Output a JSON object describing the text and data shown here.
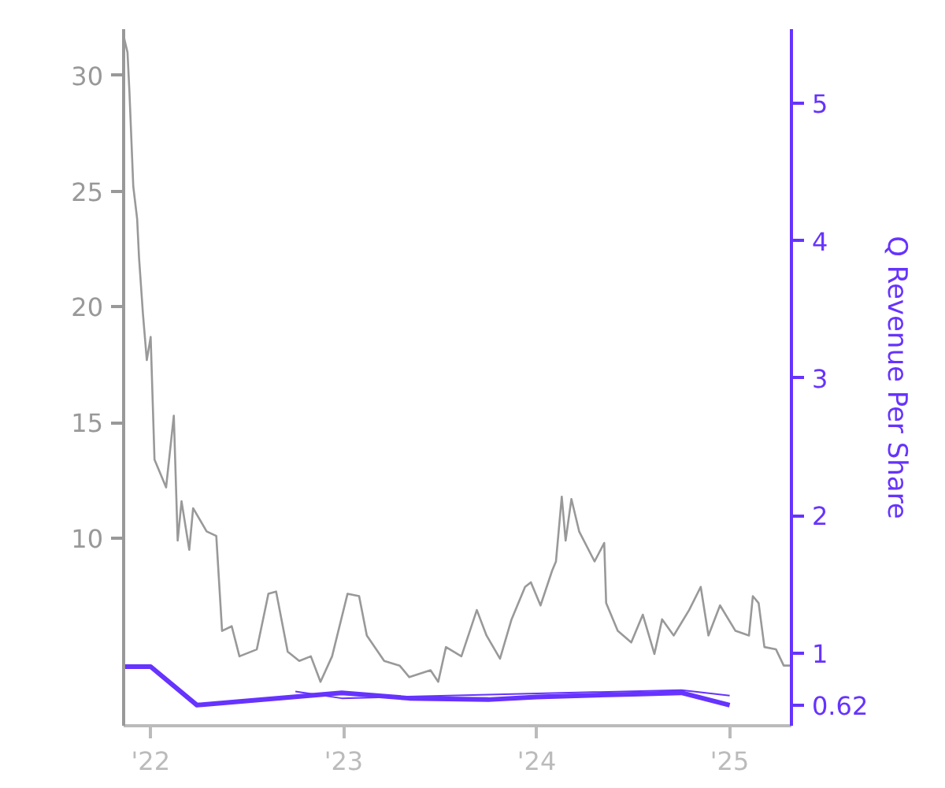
{
  "chart_data": {
    "type": "line",
    "y2label": "Q Revenue Per Share",
    "xlim": [
      2021.86,
      2025.32
    ],
    "xticks": [
      {
        "value": 2022,
        "label": "'22"
      },
      {
        "value": 2023,
        "label": "'23"
      },
      {
        "value": 2024,
        "label": "'24"
      },
      {
        "value": 2025,
        "label": "'25"
      }
    ],
    "ylim": [
      1.9,
      32.0
    ],
    "yticks": [
      10,
      15,
      20,
      25,
      30
    ],
    "y2lim": [
      0.47,
      5.54
    ],
    "y2ticks": [
      1,
      2,
      3,
      4,
      5
    ],
    "grid": false,
    "marker": "none",
    "line_style": "solid",
    "series": [
      {
        "color": "#999999",
        "x": [
          2021.86,
          2021.88,
          2021.89,
          2021.91,
          2021.93,
          2021.94,
          2021.96,
          2021.98,
          2022.0,
          2022.02,
          2022.08,
          2022.12,
          2022.14,
          2022.16,
          2022.2,
          2022.22,
          2022.29,
          2022.34,
          2022.37,
          2022.42,
          2022.46,
          2022.55,
          2022.61,
          2022.65,
          2022.71,
          2022.77,
          2022.83,
          2022.88,
          2022.94,
          2023.02,
          2023.08,
          2023.12,
          2023.21,
          2023.29,
          2023.34,
          2023.45,
          2023.49,
          2023.53,
          2023.61,
          2023.69,
          2023.74,
          2023.81,
          2023.87,
          2023.94,
          2023.97,
          2024.02,
          2024.08,
          2024.1,
          2024.13,
          2024.15,
          2024.18,
          2024.22,
          2024.3,
          2024.35,
          2024.36,
          2024.42,
          2024.49,
          2024.55,
          2024.61,
          2024.65,
          2024.71,
          2024.79,
          2024.85,
          2024.89,
          2024.95,
          2025.03,
          2025.1,
          2025.12,
          2025.15,
          2025.18,
          2025.24,
          2025.28,
          2025.32
        ],
        "values": [
          31.7,
          31.0,
          29.3,
          25.2,
          23.8,
          22.1,
          19.7,
          17.7,
          18.7,
          13.4,
          12.2,
          15.3,
          9.9,
          11.6,
          9.5,
          11.3,
          10.3,
          10.1,
          6.0,
          6.2,
          4.9,
          5.2,
          7.6,
          7.7,
          5.1,
          4.7,
          4.9,
          3.8,
          4.9,
          7.6,
          7.5,
          5.8,
          4.7,
          4.5,
          4.0,
          4.3,
          3.8,
          5.3,
          4.9,
          6.9,
          5.8,
          4.8,
          6.5,
          7.9,
          8.1,
          7.1,
          8.6,
          9.0,
          11.8,
          9.9,
          11.7,
          10.3,
          9.0,
          9.8,
          7.2,
          6.0,
          5.5,
          6.7,
          5.0,
          6.5,
          5.8,
          6.9,
          7.9,
          5.8,
          7.1,
          6.0,
          5.8,
          7.5,
          7.2,
          5.3,
          5.2,
          4.5,
          4.5
        ]
      },
      {
        "color": "#6633ff",
        "axis": "y2",
        "x": [
          2021.86,
          2022.0,
          2022.24,
          2022.99,
          2023.34,
          2023.75,
          2024.0,
          2024.5,
          2024.75,
          2025.0
        ],
        "values": [
          0.9,
          0.9,
          0.62,
          0.71,
          0.67,
          0.66,
          0.68,
          0.7,
          0.71,
          0.62
        ]
      },
      {
        "color": "#6633ff",
        "axis": "y2",
        "x": [
          2022.75,
          2022.99,
          2024.75,
          2025.0
        ],
        "values": [
          0.72,
          0.67,
          0.73,
          0.69
        ]
      }
    ],
    "annotations": [
      "0.62"
    ]
  }
}
